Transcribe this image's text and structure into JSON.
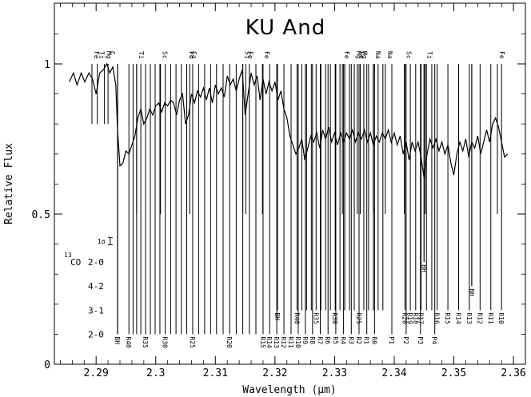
{
  "chart_data": {
    "type": "line",
    "title": "KU And",
    "xlabel": "Wavelength (μm)",
    "ylabel": "Relative Flux",
    "xlim": [
      2.283,
      2.362
    ],
    "ylim": [
      0,
      1.2
    ],
    "x_ticks": [
      {
        "value": 2.29,
        "label": "2.29"
      },
      {
        "value": 2.3,
        "label": "2.3"
      },
      {
        "value": 2.31,
        "label": "2.31"
      },
      {
        "value": 2.32,
        "label": "2.32"
      },
      {
        "value": 2.33,
        "label": "2.33"
      },
      {
        "value": 2.34,
        "label": "2.34"
      },
      {
        "value": 2.35,
        "label": "2.35"
      },
      {
        "value": 2.36,
        "label": "2.36"
      }
    ],
    "y_ticks": [
      {
        "value": 0,
        "label": "0"
      },
      {
        "value": 0.5,
        "label": "0.5"
      },
      {
        "value": 1,
        "label": "1"
      }
    ],
    "series": [
      {
        "values": [
          [
            2.2855,
            0.94
          ],
          [
            2.2862,
            0.97
          ],
          [
            2.2868,
            0.93
          ],
          [
            2.2875,
            0.97
          ],
          [
            2.2881,
            0.94
          ],
          [
            2.2888,
            0.97
          ],
          [
            2.2894,
            0.95
          ],
          [
            2.29,
            0.9
          ],
          [
            2.2906,
            0.97
          ],
          [
            2.2912,
            0.98
          ],
          [
            2.2918,
            1.0
          ],
          [
            2.2923,
            0.97
          ],
          [
            2.2928,
            0.99
          ],
          [
            2.2933,
            0.93
          ],
          [
            2.2936,
            0.78
          ],
          [
            2.294,
            0.66
          ],
          [
            2.2945,
            0.67
          ],
          [
            2.295,
            0.71
          ],
          [
            2.2955,
            0.7
          ],
          [
            2.296,
            0.73
          ],
          [
            2.2965,
            0.76
          ],
          [
            2.297,
            0.82
          ],
          [
            2.2975,
            0.85
          ],
          [
            2.298,
            0.8
          ],
          [
            2.2985,
            0.82
          ],
          [
            2.299,
            0.85
          ],
          [
            2.2995,
            0.83
          ],
          [
            2.3,
            0.86
          ],
          [
            2.3005,
            0.87
          ],
          [
            2.301,
            0.84
          ],
          [
            2.3015,
            0.87
          ],
          [
            2.302,
            0.86
          ],
          [
            2.3025,
            0.88
          ],
          [
            2.303,
            0.87
          ],
          [
            2.3035,
            0.83
          ],
          [
            2.304,
            0.88
          ],
          [
            2.3045,
            0.9
          ],
          [
            2.305,
            0.8
          ],
          [
            2.3055,
            0.83
          ],
          [
            2.306,
            0.9
          ],
          [
            2.3065,
            0.87
          ],
          [
            2.307,
            0.91
          ],
          [
            2.3075,
            0.89
          ],
          [
            2.308,
            0.92
          ],
          [
            2.3085,
            0.88
          ],
          [
            2.309,
            0.92
          ],
          [
            2.3095,
            0.87
          ],
          [
            2.31,
            0.93
          ],
          [
            2.3105,
            0.9
          ],
          [
            2.311,
            0.92
          ],
          [
            2.3115,
            0.89
          ],
          [
            2.312,
            0.96
          ],
          [
            2.3125,
            0.93
          ],
          [
            2.313,
            0.95
          ],
          [
            2.3135,
            0.91
          ],
          [
            2.314,
            0.95
          ],
          [
            2.3145,
            0.98
          ],
          [
            2.315,
            0.83
          ],
          [
            2.3155,
            0.9
          ],
          [
            2.316,
            0.97
          ],
          [
            2.3165,
            0.93
          ],
          [
            2.317,
            0.96
          ],
          [
            2.3175,
            0.88
          ],
          [
            2.318,
            0.95
          ],
          [
            2.3185,
            0.9
          ],
          [
            2.319,
            0.94
          ],
          [
            2.3195,
            0.91
          ],
          [
            2.32,
            0.94
          ],
          [
            2.3205,
            0.88
          ],
          [
            2.321,
            0.91
          ],
          [
            2.3215,
            0.85
          ],
          [
            2.322,
            0.82
          ],
          [
            2.3225,
            0.76
          ],
          [
            2.323,
            0.73
          ],
          [
            2.3235,
            0.7
          ],
          [
            2.324,
            0.72
          ],
          [
            2.3245,
            0.75
          ],
          [
            2.325,
            0.68
          ],
          [
            2.3255,
            0.72
          ],
          [
            2.326,
            0.76
          ],
          [
            2.3265,
            0.74
          ],
          [
            2.327,
            0.77
          ],
          [
            2.3275,
            0.72
          ],
          [
            2.328,
            0.78
          ],
          [
            2.3285,
            0.75
          ],
          [
            2.329,
            0.79
          ],
          [
            2.3295,
            0.74
          ],
          [
            2.33,
            0.77
          ],
          [
            2.3305,
            0.73
          ],
          [
            2.331,
            0.77
          ],
          [
            2.3315,
            0.74
          ],
          [
            2.332,
            0.77
          ],
          [
            2.3325,
            0.75
          ],
          [
            2.333,
            0.78
          ],
          [
            2.3335,
            0.74
          ],
          [
            2.334,
            0.77
          ],
          [
            2.3345,
            0.75
          ],
          [
            2.335,
            0.78
          ],
          [
            2.3355,
            0.74
          ],
          [
            2.336,
            0.77
          ],
          [
            2.3365,
            0.73
          ],
          [
            2.337,
            0.76
          ],
          [
            2.3375,
            0.74
          ],
          [
            2.338,
            0.77
          ],
          [
            2.3385,
            0.75
          ],
          [
            2.339,
            0.78
          ],
          [
            2.3395,
            0.74
          ],
          [
            2.34,
            0.77
          ],
          [
            2.3405,
            0.73
          ],
          [
            2.341,
            0.76
          ],
          [
            2.3415,
            0.7
          ],
          [
            2.342,
            0.74
          ],
          [
            2.3425,
            0.68
          ],
          [
            2.343,
            0.74
          ],
          [
            2.3435,
            0.71
          ],
          [
            2.344,
            0.74
          ],
          [
            2.3445,
            0.69
          ],
          [
            2.345,
            0.62
          ],
          [
            2.3455,
            0.7
          ],
          [
            2.346,
            0.75
          ],
          [
            2.3465,
            0.72
          ],
          [
            2.347,
            0.75
          ],
          [
            2.3475,
            0.71
          ],
          [
            2.348,
            0.74
          ],
          [
            2.3485,
            0.7
          ],
          [
            2.349,
            0.73
          ],
          [
            2.3495,
            0.67
          ],
          [
            2.35,
            0.63
          ],
          [
            2.3505,
            0.7
          ],
          [
            2.351,
            0.74
          ],
          [
            2.3515,
            0.71
          ],
          [
            2.352,
            0.75
          ],
          [
            2.3525,
            0.69
          ],
          [
            2.353,
            0.74
          ],
          [
            2.3535,
            0.72
          ],
          [
            2.354,
            0.76
          ],
          [
            2.3545,
            0.7
          ],
          [
            2.355,
            0.74
          ],
          [
            2.3555,
            0.78
          ],
          [
            2.356,
            0.74
          ],
          [
            2.3565,
            0.8
          ],
          [
            2.357,
            0.82
          ],
          [
            2.3575,
            0.79
          ],
          [
            2.358,
            0.74
          ],
          [
            2.3585,
            0.69
          ],
          [
            2.359,
            0.7
          ]
        ]
      }
    ],
    "feature_lines": [
      {
        "x": 2.2893,
        "top": 1.0,
        "bottom": 0.8,
        "label": "Fe"
      },
      {
        "x": 2.2902,
        "top": 1.0,
        "bottom": 0.8,
        "label": "Ti"
      },
      {
        "x": 2.2914,
        "top": 1.0,
        "bottom": 0.8,
        "label": "Mg"
      },
      {
        "x": 2.292,
        "top": 1.0,
        "bottom": 0.8,
        "label": "C"
      },
      {
        "x": 2.2968,
        "top": 1.0,
        "bottom": 0.5,
        "label": "Ti"
      },
      {
        "x": 2.3008,
        "top": 1.0,
        "bottom": 0.5,
        "label": "Sc"
      },
      {
        "x": 2.3052,
        "top": 1.0,
        "bottom": 0.5,
        "label": "Fe"
      },
      {
        "x": 2.3057,
        "top": 1.0,
        "bottom": 0.5,
        "label": "Ca"
      },
      {
        "x": 2.3146,
        "top": 1.0,
        "bottom": 0.5,
        "label": "Si"
      },
      {
        "x": 2.3151,
        "top": 1.0,
        "bottom": 0.5,
        "label": "Fe"
      },
      {
        "x": 2.3179,
        "top": 1.0,
        "bottom": 0.5,
        "label": "Fe"
      },
      {
        "x": 2.3313,
        "top": 1.0,
        "bottom": 0.5,
        "label": "Fe"
      },
      {
        "x": 2.3333,
        "top": 1.0,
        "bottom": 0.5,
        "label": "Mg"
      },
      {
        "x": 2.3338,
        "top": 1.0,
        "bottom": 0.5,
        "label": "Fe"
      },
      {
        "x": 2.3343,
        "top": 1.0,
        "bottom": 0.5,
        "label": "Mg"
      },
      {
        "x": 2.3365,
        "top": 1.0,
        "bottom": 0.5,
        "label": "Na"
      },
      {
        "x": 2.3385,
        "top": 1.0,
        "bottom": 0.5,
        "label": "Na"
      },
      {
        "x": 2.3417,
        "top": 1.0,
        "bottom": 0.5,
        "label": "Sc"
      },
      {
        "x": 2.3452,
        "top": 1.0,
        "bottom": 0.5,
        "label": "Ti"
      },
      {
        "x": 2.3573,
        "top": 1.0,
        "bottom": 0.5,
        "label": "Fe"
      }
    ],
    "co_bands": [
      {
        "label": "2-0",
        "y": 0.1,
        "head": {
          "x": 2.2936,
          "label": "BH"
        },
        "lines": [
          {
            "x": 2.2955,
            "label": "R40"
          },
          {
            "x": 2.2962
          },
          {
            "x": 2.2968
          },
          {
            "x": 2.2975
          },
          {
            "x": 2.2983,
            "label": "R35"
          },
          {
            "x": 2.2991
          },
          {
            "x": 2.2999
          },
          {
            "x": 2.3007
          },
          {
            "x": 2.3016,
            "label": "R30"
          },
          {
            "x": 2.3025
          },
          {
            "x": 2.3034
          },
          {
            "x": 2.3043
          },
          {
            "x": 2.3052
          },
          {
            "x": 2.3062,
            "label": "R25"
          },
          {
            "x": 2.3072
          },
          {
            "x": 2.3082
          },
          {
            "x": 2.3092
          },
          {
            "x": 2.3102
          },
          {
            "x": 2.3113
          },
          {
            "x": 2.3124,
            "label": "R20"
          },
          {
            "x": 2.3135
          },
          {
            "x": 2.3146
          },
          {
            "x": 2.3157
          },
          {
            "x": 2.3168
          },
          {
            "x": 2.318,
            "label": "R15"
          },
          {
            "x": 2.3191,
            "label": "R14"
          },
          {
            "x": 2.3203,
            "label": "R13"
          },
          {
            "x": 2.3215,
            "label": "R12"
          },
          {
            "x": 2.3227,
            "label": "R11"
          },
          {
            "x": 2.3239,
            "label": "R10"
          },
          {
            "x": 2.3251,
            "label": "R9"
          },
          {
            "x": 2.3263,
            "label": "R8"
          },
          {
            "x": 2.3276,
            "label": "R7"
          },
          {
            "x": 2.3289,
            "label": "R6"
          },
          {
            "x": 2.3302,
            "label": "R5"
          },
          {
            "x": 2.3315,
            "label": "R4"
          },
          {
            "x": 2.3328,
            "label": "R3"
          },
          {
            "x": 2.3341,
            "label": "R2"
          },
          {
            "x": 2.3354,
            "label": "R1"
          },
          {
            "x": 2.3367,
            "label": "R0"
          },
          {
            "x": 2.3396,
            "label": "P1"
          },
          {
            "x": 2.342,
            "label": "P2"
          },
          {
            "x": 2.3444,
            "label": "P3"
          },
          {
            "x": 2.3468,
            "label": "P4"
          }
        ]
      },
      {
        "label": "3-1",
        "y": 0.18,
        "head": {
          "x": 2.3204,
          "label": "BH"
        },
        "lines": [
          {
            "x": 2.3237,
            "label": "R40"
          },
          {
            "x": 2.3245
          },
          {
            "x": 2.3253
          },
          {
            "x": 2.3261
          },
          {
            "x": 2.3269,
            "label": "R35"
          },
          {
            "x": 2.3277
          },
          {
            "x": 2.3285
          },
          {
            "x": 2.3293
          },
          {
            "x": 2.3301,
            "label": "R30"
          },
          {
            "x": 2.3309
          },
          {
            "x": 2.3317
          },
          {
            "x": 2.3325
          },
          {
            "x": 2.3333
          },
          {
            "x": 2.3341,
            "label": "R25"
          },
          {
            "x": 2.3349
          },
          {
            "x": 2.3357
          },
          {
            "x": 2.3365
          },
          {
            "x": 2.3373
          },
          {
            "x": 2.3381
          },
          {
            "x": 2.3418,
            "label": "R20"
          },
          {
            "x": 2.3427,
            "label": "R19"
          },
          {
            "x": 2.3436,
            "label": "R18"
          },
          {
            "x": 2.3445,
            "label": "R17"
          },
          {
            "x": 2.3454
          },
          {
            "x": 2.3463
          },
          {
            "x": 2.3472,
            "label": "R16"
          },
          {
            "x": 2.349,
            "label": "R15"
          },
          {
            "x": 2.3508,
            "label": "R14"
          },
          {
            "x": 2.3526,
            "label": "R13"
          },
          {
            "x": 2.3544,
            "label": "R12"
          },
          {
            "x": 2.3562,
            "label": "R11"
          },
          {
            "x": 2.358,
            "label": "R10"
          }
        ]
      },
      {
        "label": "4-2",
        "y": 0.26,
        "head": {
          "x": 2.353,
          "label": "BH"
        },
        "lines": []
      },
      {
        "label": "2-0",
        "prefix": "13",
        "name": "CO",
        "y": 0.34,
        "head": {
          "x": 2.345,
          "label": "BH"
        },
        "lines": []
      }
    ],
    "error_bar": {
      "x": 2.2905,
      "y": 0.41,
      "half_height": 0.012,
      "label": "1σ"
    }
  }
}
